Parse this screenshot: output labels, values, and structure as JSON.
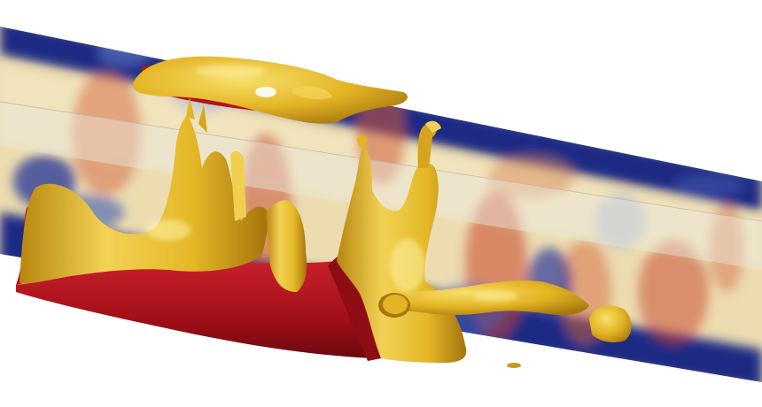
{
  "image": {
    "subject": "3d-flow-visualization",
    "colors": {
      "background": "#ffffff",
      "field_low": "#1f2a84",
      "field_mid": "#ecdcb0",
      "field_high": "#c8412a",
      "isosurface": "#e3b423",
      "isosurface_highlight": "#f6dc62",
      "isosurface_shadow": "#a7770f",
      "base_red": "#b3121d",
      "base_red_dark": "#6b0810",
      "glass": "#e9e6dc"
    }
  }
}
